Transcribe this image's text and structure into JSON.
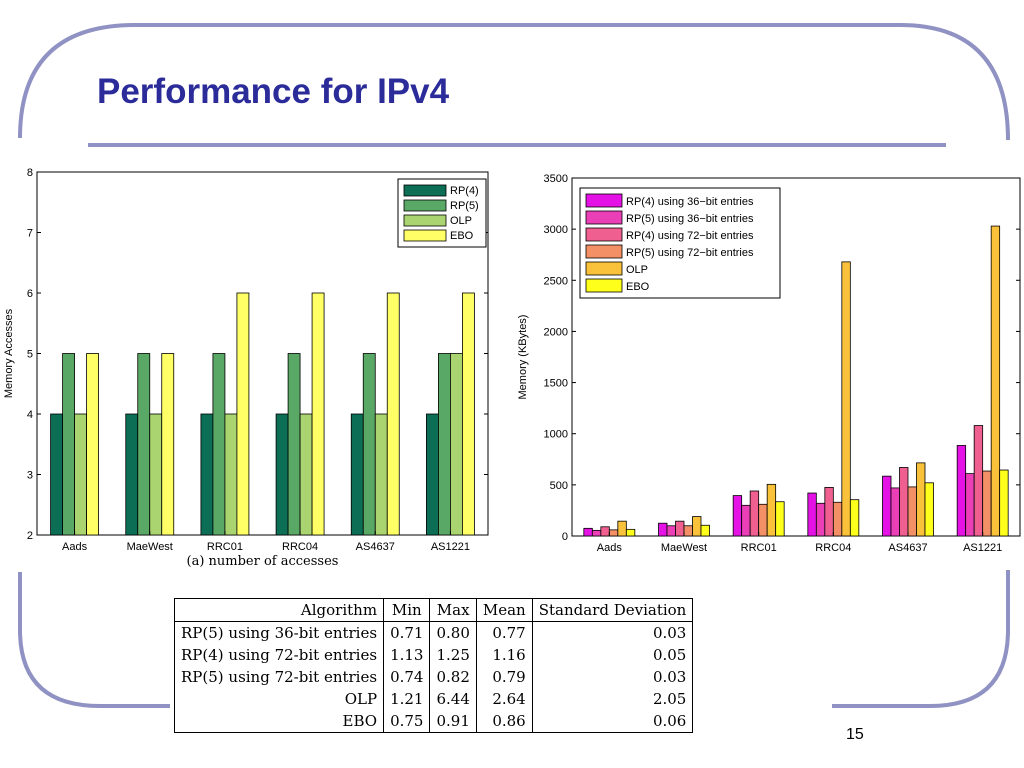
{
  "slide": {
    "title": "Performance for IPv4",
    "page_number": "15",
    "frame_color": "#8f92c2",
    "title_color": "#2b2b9a"
  },
  "chart_data": [
    {
      "type": "bar",
      "caption": "(a) number of accesses",
      "ylabel": "Memory Accesses",
      "xlabel": "",
      "categories": [
        "Aads",
        "MaeWest",
        "RRC01",
        "RRC04",
        "AS4637",
        "AS1221"
      ],
      "ylim": [
        2,
        8
      ],
      "yticks": [
        2,
        3,
        4,
        5,
        6,
        7,
        8
      ],
      "grid": false,
      "legend_position": "top-right",
      "series": [
        {
          "name": "RP(4)",
          "color": "#0b6e55",
          "values": [
            4,
            4,
            4,
            4,
            4,
            4
          ]
        },
        {
          "name": "RP(5)",
          "color": "#5aa866",
          "values": [
            5,
            5,
            5,
            5,
            5,
            5
          ]
        },
        {
          "name": "OLP",
          "color": "#a9d46f",
          "values": [
            4,
            4,
            4,
            4,
            4,
            5
          ]
        },
        {
          "name": "EBO",
          "color": "#ffff66",
          "values": [
            5,
            5,
            6,
            6,
            6,
            6
          ]
        }
      ]
    },
    {
      "type": "bar",
      "ylabel": "Memory (KBytes)",
      "xlabel": "",
      "categories": [
        "Aads",
        "MaeWest",
        "RRC01",
        "RRC04",
        "AS4637",
        "AS1221"
      ],
      "ylim": [
        0,
        3500
      ],
      "yticks": [
        0,
        500,
        1000,
        1500,
        2000,
        2500,
        3000,
        3500
      ],
      "grid": false,
      "legend_position": "top-left",
      "series": [
        {
          "name": "RP(4) using 36−bit entries",
          "color": "#e512e5",
          "values": [
            75,
            125,
            395,
            420,
            585,
            885
          ]
        },
        {
          "name": "RP(5) using 36−bit entries",
          "color": "#eb3fb8",
          "values": [
            55,
            100,
            300,
            320,
            470,
            610
          ]
        },
        {
          "name": "RP(4) using 72−bit entries",
          "color": "#ef6090",
          "values": [
            90,
            145,
            440,
            475,
            670,
            1080
          ]
        },
        {
          "name": "RP(5) using 72−bit entries",
          "color": "#f49065",
          "values": [
            60,
            100,
            310,
            330,
            480,
            635
          ]
        },
        {
          "name": "OLP",
          "color": "#fac23a",
          "values": [
            145,
            190,
            505,
            2680,
            715,
            3030
          ]
        },
        {
          "name": "EBO",
          "color": "#ffff1c",
          "values": [
            65,
            105,
            335,
            355,
            520,
            645
          ]
        }
      ]
    }
  ],
  "stats_table": {
    "headers": [
      "Algorithm",
      "Min",
      "Max",
      "Mean",
      "Standard Deviation"
    ],
    "rows": [
      [
        "RP(5) using 36-bit entries",
        "0.71",
        "0.80",
        "0.77",
        "0.03"
      ],
      [
        "RP(4) using 72-bit entries",
        "1.13",
        "1.25",
        "1.16",
        "0.05"
      ],
      [
        "RP(5) using 72-bit entries",
        "0.74",
        "0.82",
        "0.79",
        "0.03"
      ],
      [
        "OLP",
        "1.21",
        "6.44",
        "2.64",
        "2.05"
      ],
      [
        "EBO",
        "0.75",
        "0.91",
        "0.86",
        "0.06"
      ]
    ]
  }
}
